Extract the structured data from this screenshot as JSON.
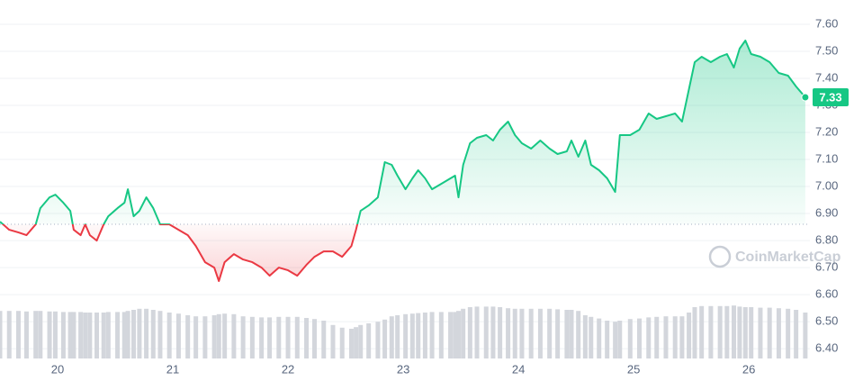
{
  "chart_data": {
    "type": "line",
    "x": [
      19.5,
      19.58,
      19.66,
      19.73,
      19.81,
      19.85,
      19.93,
      19.98,
      20.05,
      20.11,
      20.14,
      20.2,
      20.24,
      20.28,
      20.34,
      20.4,
      20.44,
      20.52,
      20.58,
      20.61,
      20.66,
      20.71,
      20.77,
      20.83,
      20.89,
      20.97,
      21.05,
      21.13,
      21.2,
      21.28,
      21.36,
      21.4,
      21.45,
      21.53,
      21.61,
      21.69,
      21.77,
      21.84,
      21.92,
      22.0,
      22.08,
      22.16,
      22.23,
      22.31,
      22.39,
      22.47,
      22.55,
      22.59,
      22.63,
      22.7,
      22.78,
      22.84,
      22.9,
      22.95,
      23.02,
      23.08,
      23.13,
      23.19,
      23.25,
      23.33,
      23.41,
      23.45,
      23.48,
      23.52,
      23.58,
      23.64,
      23.72,
      23.78,
      23.84,
      23.91,
      23.97,
      24.03,
      24.11,
      24.19,
      24.27,
      24.34,
      24.42,
      24.46,
      24.52,
      24.58,
      24.63,
      24.7,
      24.77,
      24.84,
      24.88,
      24.97,
      25.05,
      25.13,
      25.2,
      25.28,
      25.36,
      25.42,
      25.48,
      25.53,
      25.59,
      25.67,
      25.75,
      25.81,
      25.87,
      25.92,
      25.97,
      26.02,
      26.1,
      26.18,
      26.26,
      26.34,
      26.41,
      26.49
    ],
    "series": [
      {
        "name": "Price",
        "up_color": "#16c784",
        "down_color": "#ea3943",
        "values": [
          6.87,
          6.84,
          6.83,
          6.82,
          6.86,
          6.92,
          6.96,
          6.97,
          6.94,
          6.91,
          6.84,
          6.82,
          6.86,
          6.82,
          6.8,
          6.86,
          6.89,
          6.92,
          6.94,
          6.99,
          6.89,
          6.91,
          6.96,
          6.92,
          6.86,
          6.86,
          6.84,
          6.82,
          6.78,
          6.72,
          6.7,
          6.65,
          6.72,
          6.75,
          6.73,
          6.72,
          6.7,
          6.67,
          6.7,
          6.69,
          6.67,
          6.71,
          6.74,
          6.76,
          6.76,
          6.74,
          6.78,
          6.84,
          6.91,
          6.93,
          6.96,
          7.09,
          7.08,
          7.04,
          6.99,
          7.03,
          7.06,
          7.03,
          6.99,
          7.01,
          7.03,
          7.04,
          6.96,
          7.08,
          7.16,
          7.18,
          7.19,
          7.17,
          7.21,
          7.24,
          7.19,
          7.16,
          7.14,
          7.17,
          7.14,
          7.12,
          7.13,
          7.17,
          7.11,
          7.17,
          7.08,
          7.06,
          7.03,
          6.98,
          7.19,
          7.19,
          7.21,
          7.27,
          7.25,
          7.26,
          7.27,
          7.24,
          7.36,
          7.46,
          7.48,
          7.46,
          7.48,
          7.49,
          7.44,
          7.51,
          7.54,
          7.49,
          7.48,
          7.46,
          7.42,
          7.41,
          7.37,
          7.33
        ]
      },
      {
        "name": "Volume",
        "color": "#d3d6dc",
        "values": [
          88,
          88,
          88,
          87,
          88,
          88,
          87,
          87,
          86,
          86,
          86,
          86,
          85,
          85,
          85,
          85,
          86,
          86,
          86,
          88,
          90,
          92,
          92,
          90,
          88,
          85,
          83,
          80,
          78,
          78,
          80,
          82,
          83,
          82,
          78,
          77,
          76,
          76,
          77,
          77,
          77,
          75,
          73,
          70,
          62,
          57,
          55,
          58,
          62,
          65,
          68,
          72,
          78,
          80,
          82,
          83,
          84,
          85,
          86,
          86,
          86,
          86,
          88,
          92,
          95,
          96,
          96,
          96,
          95,
          93,
          92,
          92,
          92,
          92,
          92,
          91,
          90,
          90,
          88,
          80,
          77,
          74,
          70,
          68,
          70,
          73,
          74,
          76,
          77,
          78,
          78,
          78,
          85,
          95,
          97,
          97,
          97,
          97,
          98,
          96,
          95,
          95,
          94,
          94,
          93,
          92,
          90,
          85
        ]
      }
    ],
    "baseline": 6.86,
    "current_price": 7.33,
    "watermark": "CoinMarketCap",
    "xlim": [
      19.5,
      26.53
    ],
    "xticks": [
      20,
      21,
      22,
      23,
      24,
      25,
      26
    ],
    "ylim": [
      6.357,
      7.69
    ],
    "yticks": [
      {
        "value": 6.4,
        "label": "6.40"
      },
      {
        "value": 6.5,
        "label": "6.50"
      },
      {
        "value": 6.6,
        "label": "6.60"
      },
      {
        "value": 6.7,
        "label": "6.70"
      },
      {
        "value": 6.8,
        "label": "6.80"
      },
      {
        "value": 6.9,
        "label": "6.90"
      },
      {
        "value": 7.0,
        "label": "7.00"
      },
      {
        "value": 7.1,
        "label": "7.10"
      },
      {
        "value": 7.2,
        "label": "7.20"
      },
      {
        "value": 7.3,
        "label": "7.30"
      },
      {
        "value": 7.4,
        "label": "7.40"
      },
      {
        "value": 7.5,
        "label": "7.50"
      },
      {
        "value": 7.6,
        "label": "7.60"
      }
    ],
    "grid": true
  }
}
